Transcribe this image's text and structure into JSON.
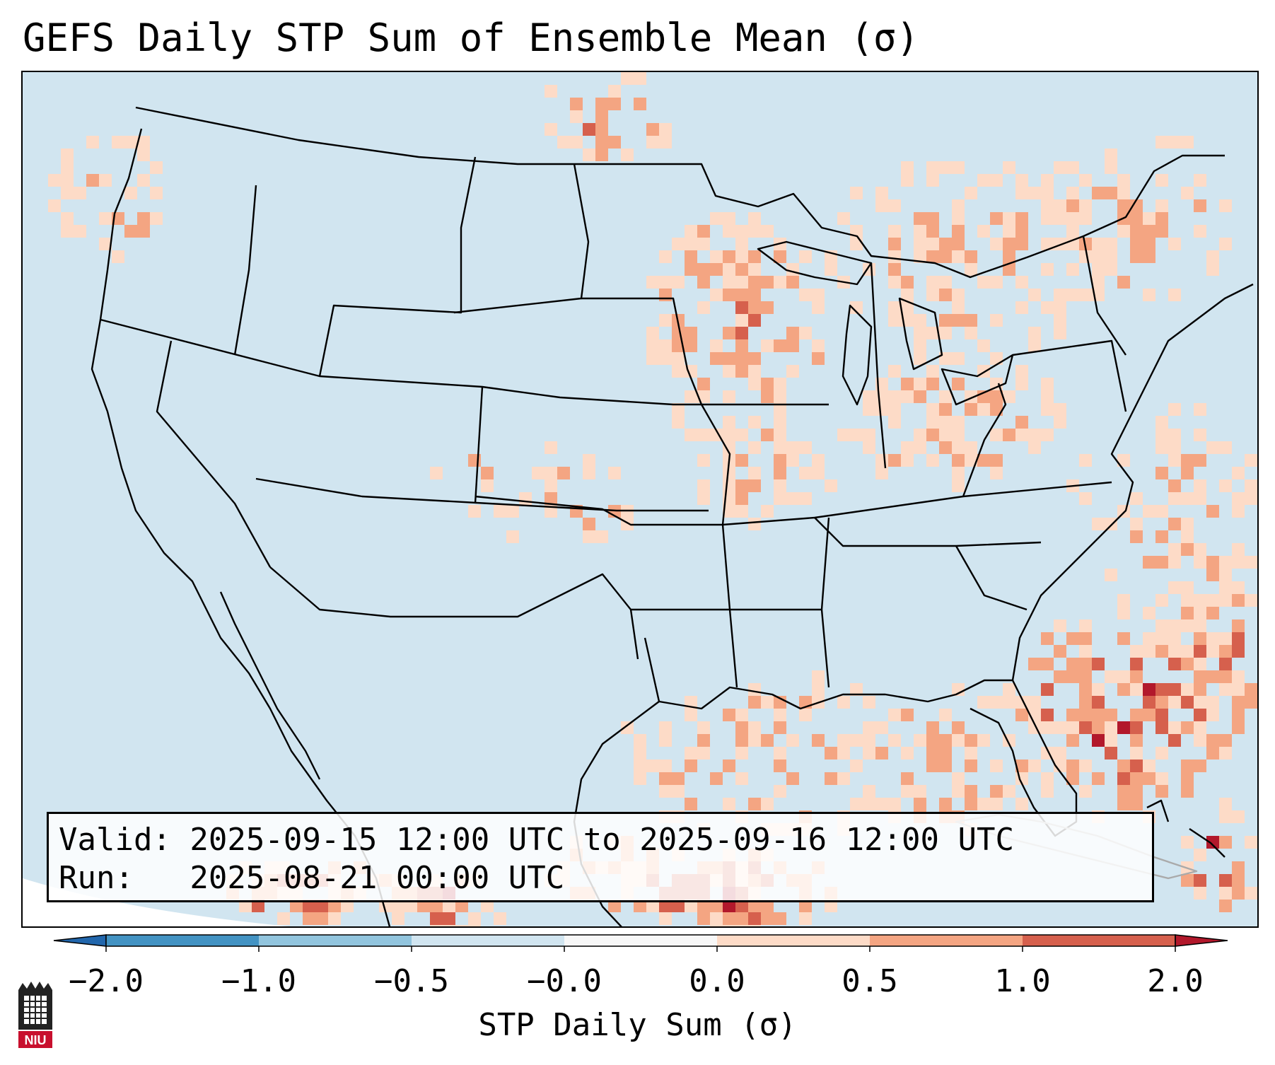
{
  "title": "GEFS Daily STP Sum of Ensemble Mean (σ)",
  "info": {
    "valid_line": "Valid: 2025-09-15 12:00 UTC to 2025-09-16 12:00 UTC",
    "run_line": "Run:   2025-08-21 00:00 UTC"
  },
  "colorbar": {
    "label": "STP Daily Sum (σ)",
    "ticks": [
      "−2.0",
      "−1.0",
      "−0.5",
      "−0.0",
      "0.0",
      "0.5",
      "1.0",
      "2.0"
    ],
    "bin_colors": [
      "#4393c3",
      "#92c5de",
      "#d1e5f0",
      "#f7f7f7",
      "#fddbc7",
      "#f4a582",
      "#d6604d"
    ],
    "extend_low_color": "#2166ac",
    "extend_high_color": "#b2182b"
  },
  "map": {
    "ocean_color": "#d1e5f0",
    "border_color": "#000000",
    "level_colors": [
      "#fddbc7",
      "#f4a582",
      "#d6604d",
      "#b2182b"
    ]
  },
  "logo": {
    "text": "NIU",
    "color": "#c8102e"
  }
}
